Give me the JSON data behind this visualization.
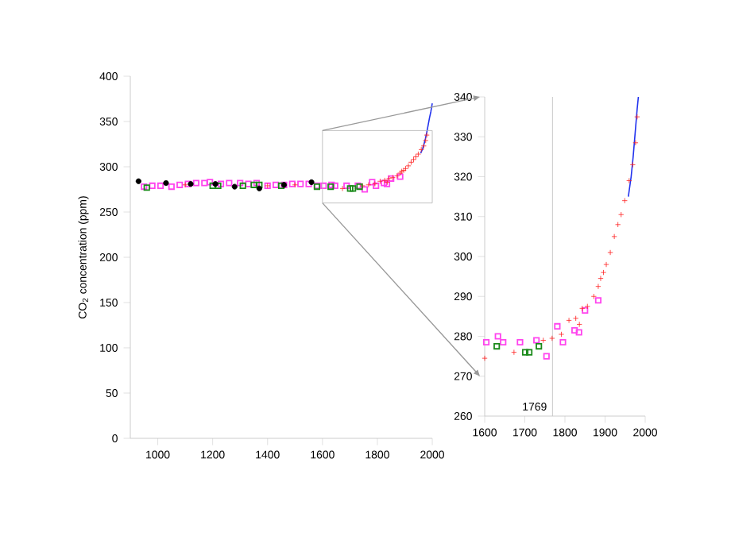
{
  "chart_data": [
    {
      "type": "scatter",
      "ylabel": "CO$_{2}$ concentration (ppm)",
      "xlim": [
        900,
        2000
      ],
      "ylim": [
        0,
        400
      ],
      "xticks": [
        1000,
        1200,
        1400,
        1600,
        1800,
        2000
      ],
      "yticks": [
        0,
        50,
        100,
        150,
        200,
        250,
        300,
        350,
        400
      ],
      "grid": false,
      "series": [
        {
          "marker": "square",
          "color": "#ff44ee",
          "x": [
            950,
            980,
            1010,
            1050,
            1080,
            1110,
            1140,
            1170,
            1190,
            1230,
            1260,
            1300,
            1330,
            1360,
            1400,
            1430,
            1460,
            1490,
            1520,
            1550,
            1580,
            1604,
            1633,
            1646,
            1688,
            1729,
            1754,
            1781,
            1795,
            1824,
            1835,
            1850,
            1883
          ],
          "values": [
            278,
            279,
            279,
            278,
            280,
            281,
            282,
            282,
            283,
            281,
            282,
            282,
            281,
            282,
            279,
            280,
            280,
            281,
            281,
            281,
            279,
            279,
            280,
            279,
            279,
            279,
            275,
            283,
            279,
            282,
            281,
            287,
            289
          ]
        },
        {
          "marker": "cross",
          "color": "#ff2020",
          "x": [
            1100,
            1200,
            1400,
            1500,
            1600,
            1673,
            1746,
            1768,
            1791,
            1810,
            1827,
            1836,
            1843,
            1856,
            1872,
            1883,
            1889,
            1896,
            1903,
            1913,
            1923,
            1932,
            1940,
            1949,
            1960,
            1969,
            1976,
            1980
          ],
          "values": [
            280,
            null,
            279,
            280,
            null,
            276,
            279,
            280,
            281,
            284,
            285,
            283,
            287,
            288,
            290,
            293,
            295,
            296,
            298,
            301,
            305,
            308,
            311,
            314,
            319,
            323,
            329,
            335
          ]
        },
        {
          "marker": "square",
          "color": "#1a8a1a",
          "x": [
            960,
            1200,
            1220,
            1310,
            1350,
            1370,
            1450,
            1580,
            1630,
            1701,
            1711,
            1735
          ],
          "values": [
            277,
            279,
            279,
            279,
            280,
            280,
            279,
            278,
            278,
            276,
            276,
            278
          ]
        },
        {
          "marker": "circle",
          "color": "#000000",
          "x": [
            930,
            1030,
            1120,
            1210,
            1280,
            1370,
            1460,
            1560
          ],
          "values": [
            284,
            282,
            281,
            281,
            278,
            276,
            280,
            283
          ]
        },
        {
          "type": "line",
          "marker": "none",
          "color": "#2233ee",
          "x": [
            1958,
            1965,
            1970,
            1975,
            1980,
            1985,
            1990,
            1995,
            2000
          ],
          "values": [
            315,
            320,
            325,
            331,
            338,
            346,
            354,
            361,
            370
          ]
        }
      ]
    },
    {
      "type": "scatter",
      "xlim": [
        1600,
        2000
      ],
      "ylim": [
        260,
        340
      ],
      "xticks": [
        1600,
        1700,
        1800,
        1900,
        2000
      ],
      "yticks": [
        260,
        270,
        280,
        290,
        300,
        310,
        320,
        330,
        340
      ],
      "grid": false,
      "ref_lines": [
        {
          "axis": "x",
          "value": 1769,
          "label": "1769",
          "color": "#bbbbbb"
        }
      ],
      "series": [
        {
          "marker": "square",
          "color": "#ff44ee",
          "x": [
            1604,
            1633,
            1646,
            1688,
            1729,
            1754,
            1781,
            1795,
            1824,
            1835,
            1850,
            1883
          ],
          "values": [
            278.5,
            280,
            278.5,
            278.5,
            279,
            275,
            282.5,
            278.5,
            281.5,
            281,
            286.5,
            289
          ]
        },
        {
          "marker": "cross",
          "color": "#ff2020",
          "x": [
            1600,
            1673,
            1746,
            1768,
            1791,
            1810,
            1827,
            1836,
            1843,
            1856,
            1872,
            1883,
            1889,
            1896,
            1903,
            1913,
            1923,
            1932,
            1940,
            1949,
            1960,
            1969,
            1976,
            1980
          ],
          "values": [
            274.5,
            276,
            279,
            279.5,
            280.5,
            284,
            284.5,
            283,
            287,
            287.5,
            290,
            292.5,
            294.5,
            296,
            298,
            301,
            305,
            308,
            310.5,
            314,
            319,
            323,
            328.5,
            335
          ]
        },
        {
          "marker": "square",
          "color": "#1a8a1a",
          "x": [
            1630,
            1701,
            1711,
            1735
          ],
          "values": [
            277.5,
            276,
            276,
            277.5
          ]
        },
        {
          "type": "line",
          "marker": "none",
          "color": "#2233ee",
          "x": [
            1958,
            1965,
            1970,
            1975,
            1980,
            1983
          ],
          "values": [
            315,
            320,
            325,
            331,
            337,
            340
          ]
        }
      ]
    }
  ]
}
